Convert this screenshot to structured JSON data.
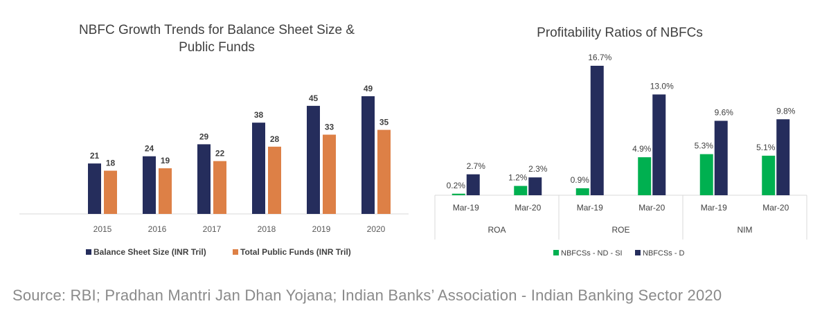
{
  "chart_data": [
    {
      "type": "bar",
      "title": "NBFC Growth Trends for Balance Sheet Size & Public Funds",
      "title_lines": [
        "NBFC Growth Trends for Balance Sheet Size &",
        "Public Funds"
      ],
      "categories": [
        "2015",
        "2016",
        "2017",
        "2018",
        "2019",
        "2020"
      ],
      "series": [
        {
          "name": "Balance Sheet Size (INR Tril)",
          "values": [
            21,
            24,
            29,
            38,
            45,
            49
          ],
          "color": "#252d5c"
        },
        {
          "name": "Total Public Funds (INR Tril)",
          "values": [
            18,
            19,
            22,
            28,
            33,
            35
          ],
          "color": "#dd8046"
        }
      ],
      "ylim": [
        0,
        49
      ],
      "grid": false,
      "legend_position": "bottom"
    },
    {
      "type": "bar",
      "title": "Profitability Ratios of NBFCs",
      "groups": [
        {
          "name": "ROA",
          "categories": [
            "Mar-19",
            "Mar-20"
          ]
        },
        {
          "name": "ROE",
          "categories": [
            "Mar-19",
            "Mar-20"
          ]
        },
        {
          "name": "NIM",
          "categories": [
            "Mar-19",
            "Mar-20"
          ]
        }
      ],
      "series": [
        {
          "name": "NBFCSs - ND - SI",
          "values": [
            0.2,
            1.2,
            0.9,
            4.9,
            5.3,
            5.1
          ],
          "labels": [
            "0.2%",
            "1.2%",
            "0.9%",
            "4.9%",
            "5.3%",
            "5.1%"
          ],
          "color": "#00b050"
        },
        {
          "name": "NBFCSs - D",
          "values": [
            2.7,
            2.3,
            16.7,
            13.0,
            9.6,
            9.8
          ],
          "labels": [
            "2.7%",
            "2.3%",
            "16.7%",
            "13.0%",
            "9.6%",
            "9.8%"
          ],
          "color": "#252d5c"
        }
      ],
      "ylim": [
        0,
        16.7
      ],
      "grid": false,
      "legend_position": "bottom"
    }
  ],
  "source_text": "Source: RBI; Pradhan Mantri Jan Dhan Yojana; Indian Banks’ Association - Indian Banking Sector 2020"
}
